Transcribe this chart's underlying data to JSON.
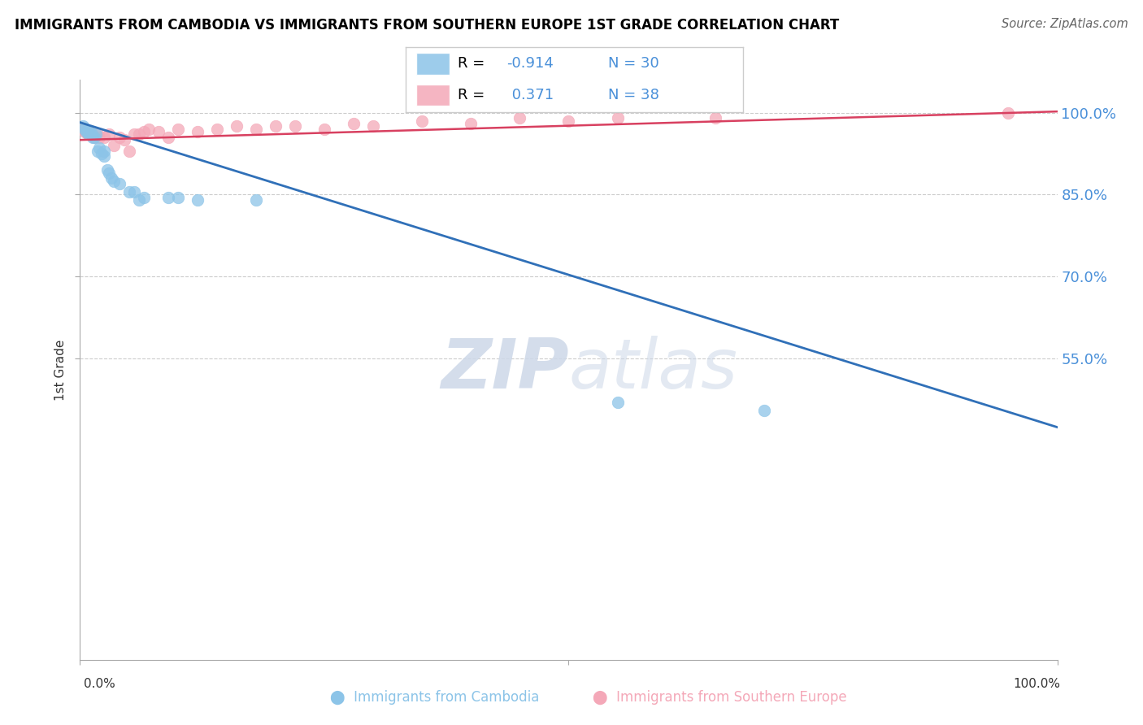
{
  "title": "IMMIGRANTS FROM CAMBODIA VS IMMIGRANTS FROM SOUTHERN EUROPE 1ST GRADE CORRELATION CHART",
  "source": "Source: ZipAtlas.com",
  "ylabel": "1st Grade",
  "xlim": [
    0.0,
    1.0
  ],
  "ylim": [
    0.0,
    1.06
  ],
  "yticks": [
    0.55,
    0.7,
    0.85,
    1.0
  ],
  "ytick_labels": [
    "55.0%",
    "70.0%",
    "85.0%",
    "100.0%"
  ],
  "blue_fill": "#8cc4e8",
  "pink_fill": "#f4a8b8",
  "blue_line_color": "#3070b8",
  "pink_line_color": "#d84060",
  "R_blue": -0.914,
  "N_blue": 30,
  "R_pink": 0.371,
  "N_pink": 38,
  "axis_label_color": "#4a90d9",
  "watermark_color": "#cdd8e8",
  "blue_x": [
    0.003,
    0.005,
    0.006,
    0.008,
    0.009,
    0.01,
    0.012,
    0.013,
    0.015,
    0.016,
    0.018,
    0.02,
    0.022,
    0.025,
    0.025,
    0.028,
    0.03,
    0.032,
    0.035,
    0.04,
    0.05,
    0.055,
    0.06,
    0.065,
    0.09,
    0.1,
    0.12,
    0.18,
    0.55,
    0.7
  ],
  "blue_y": [
    0.975,
    0.97,
    0.965,
    0.965,
    0.96,
    0.965,
    0.96,
    0.955,
    0.955,
    0.96,
    0.93,
    0.935,
    0.925,
    0.92,
    0.93,
    0.895,
    0.89,
    0.88,
    0.875,
    0.87,
    0.855,
    0.855,
    0.84,
    0.845,
    0.845,
    0.845,
    0.84,
    0.84,
    0.47,
    0.455
  ],
  "pink_x": [
    0.003,
    0.005,
    0.006,
    0.008,
    0.01,
    0.012,
    0.015,
    0.018,
    0.02,
    0.025,
    0.03,
    0.035,
    0.04,
    0.045,
    0.05,
    0.055,
    0.06,
    0.065,
    0.07,
    0.08,
    0.09,
    0.1,
    0.12,
    0.14,
    0.16,
    0.18,
    0.2,
    0.22,
    0.25,
    0.28,
    0.3,
    0.35,
    0.4,
    0.45,
    0.5,
    0.55,
    0.65,
    0.95
  ],
  "pink_y": [
    0.97,
    0.965,
    0.965,
    0.96,
    0.965,
    0.96,
    0.955,
    0.96,
    0.955,
    0.955,
    0.96,
    0.94,
    0.955,
    0.95,
    0.93,
    0.96,
    0.96,
    0.965,
    0.97,
    0.965,
    0.955,
    0.97,
    0.965,
    0.97,
    0.975,
    0.97,
    0.975,
    0.975,
    0.97,
    0.98,
    0.975,
    0.985,
    0.98,
    0.99,
    0.985,
    0.99,
    0.99,
    1.0
  ],
  "blue_trend_x": [
    0.0,
    1.0
  ],
  "blue_trend_y": [
    0.982,
    0.425
  ],
  "pink_trend_x": [
    0.0,
    1.0
  ],
  "pink_trend_y": [
    0.95,
    1.002
  ]
}
